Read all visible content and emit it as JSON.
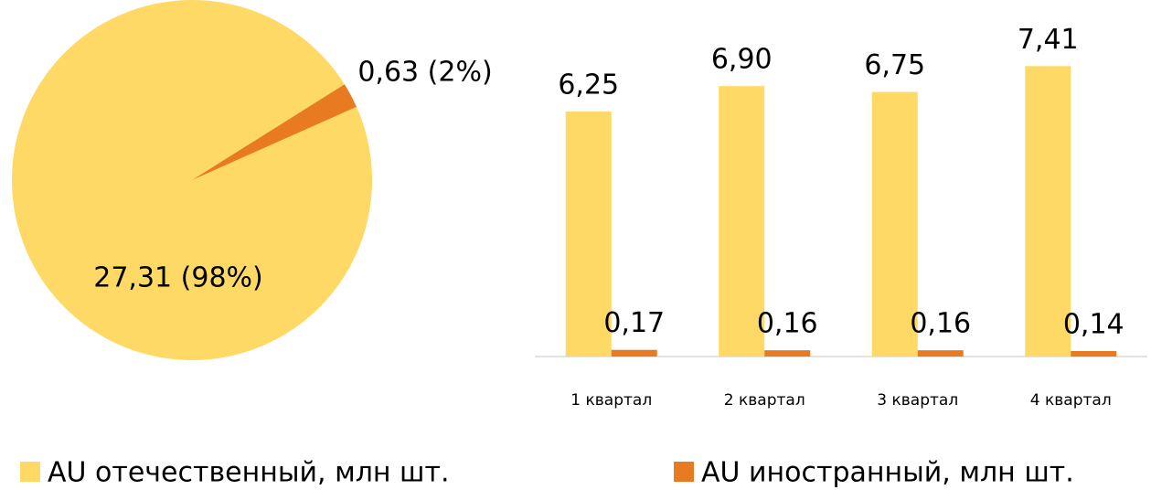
{
  "chart_data": [
    {
      "type": "pie",
      "values": [
        27.31,
        0.63
      ],
      "value_labels": [
        "27,31 (98%)",
        "0,63 (2%)"
      ],
      "colors": [
        "#FFD966",
        "#E87B22"
      ]
    },
    {
      "type": "bar",
      "categories": [
        "1 квартал",
        "2 квартал",
        "3 квартал",
        "4 квартал"
      ],
      "series": [
        {
          "name": "AU отечественный, млн шт.",
          "color": "#FFD966",
          "values": [
            6.25,
            6.9,
            6.75,
            7.41
          ],
          "value_labels": [
            "6,25",
            "6,90",
            "6,75",
            "7,41"
          ]
        },
        {
          "name": "AU иностранный, млн шт.",
          "color": "#E87B22",
          "values": [
            0.17,
            0.16,
            0.16,
            0.14
          ],
          "value_labels": [
            "0,17",
            "0,16",
            "0,16",
            "0,14"
          ]
        }
      ],
      "ylim": [
        0,
        8
      ],
      "legend": "bottom"
    }
  ]
}
